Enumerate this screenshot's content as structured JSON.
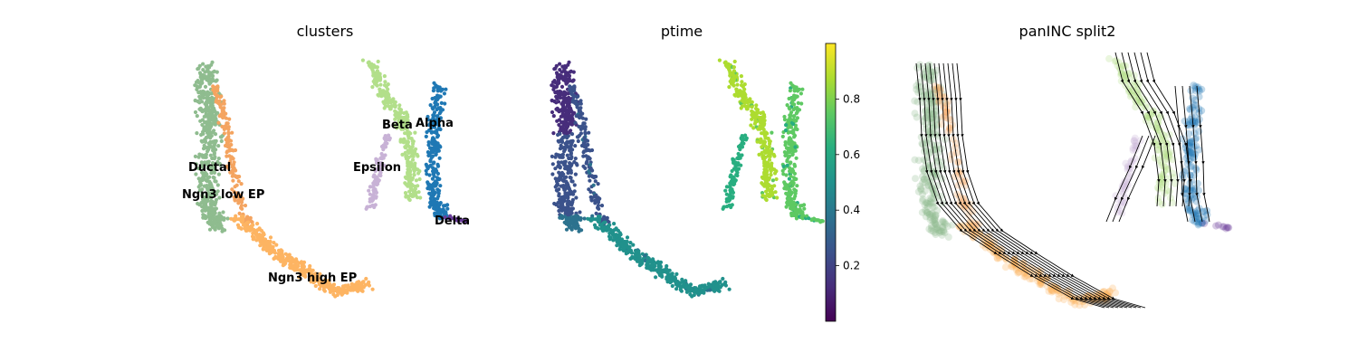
{
  "chart_data": [
    {
      "type": "scatter",
      "title": "clusters",
      "legend": "on data",
      "series": [
        {
          "name": "Ductal",
          "color": "#8fbc8f"
        },
        {
          "name": "Ngn3 low EP",
          "color": "#f4a460"
        },
        {
          "name": "Ngn3 high EP",
          "color": "#fdb462"
        },
        {
          "name": "Epsilon",
          "color": "#c8b2d6"
        },
        {
          "name": "Beta",
          "color": "#b2df8a"
        },
        {
          "name": "Alpha",
          "color": "#1f78b4"
        },
        {
          "name": "Delta",
          "color": "#6a3d9a"
        }
      ]
    },
    {
      "type": "scatter",
      "title": "ptime",
      "colorbar": {
        "colormap": "viridis",
        "range": [
          0,
          1
        ],
        "ticks": [
          0.2,
          0.4,
          0.6,
          0.8
        ],
        "tick_labels": [
          "0.2",
          "0.4",
          "0.6",
          "0.8"
        ]
      }
    },
    {
      "type": "scatter",
      "title": "panINC split2",
      "overlay": "streamlines"
    }
  ],
  "colors": {
    "ductal": "#8fbc8f",
    "ngn3_low": "#f4a460",
    "ngn3_high": "#fdb462",
    "epsilon": "#c8b2d6",
    "beta": "#b2df8a",
    "alpha": "#1f78b4",
    "delta": "#6a3d9a"
  }
}
